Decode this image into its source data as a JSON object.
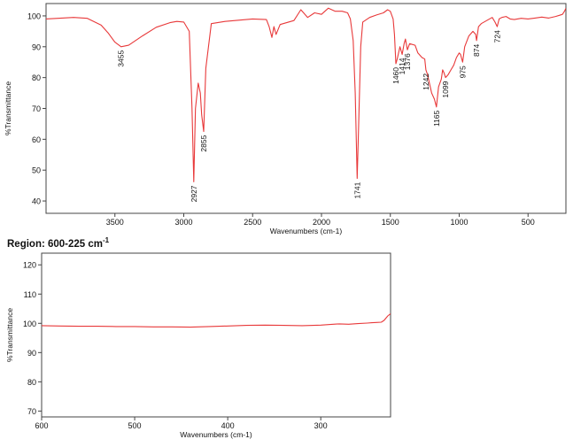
{
  "colors": {
    "spectrum": "#e8393a",
    "axis": "#444444",
    "text": "#111111"
  },
  "region_label": {
    "prefix": "Region: 600-225 cm",
    "sup": "-1"
  },
  "chart_data": [
    {
      "type": "line",
      "xlabel": "Wavenumbers (cm-1)",
      "ylabel": "%Transmittance",
      "xlim": [
        4000,
        225
      ],
      "ylim": [
        36,
        104
      ],
      "x_reversed": true,
      "xticks": [
        3500,
        3000,
        2500,
        2000,
        1500,
        1000,
        500
      ],
      "yticks": [
        40,
        50,
        60,
        70,
        80,
        90,
        100
      ],
      "peak_labels": [
        {
          "text": "3455",
          "x": 3455,
          "y": 90
        },
        {
          "text": "2927",
          "x": 2927,
          "y": 46.2
        },
        {
          "text": "2855",
          "x": 2855,
          "y": 62.5
        },
        {
          "text": "1741",
          "x": 1741,
          "y": 47.3
        },
        {
          "text": "1460",
          "x": 1460,
          "y": 84.5
        },
        {
          "text": "1414",
          "x": 1414,
          "y": 87.5
        },
        {
          "text": "1376",
          "x": 1376,
          "y": 89
        },
        {
          "text": "1242",
          "x": 1242,
          "y": 82.5
        },
        {
          "text": "1165",
          "x": 1165,
          "y": 70.5
        },
        {
          "text": "1099",
          "x": 1099,
          "y": 80
        },
        {
          "text": "975",
          "x": 975,
          "y": 85
        },
        {
          "text": "874",
          "x": 874,
          "y": 92
        },
        {
          "text": "724",
          "x": 724,
          "y": 96.5
        }
      ],
      "series": [
        {
          "x": [
            4000,
            3800,
            3700,
            3600,
            3550,
            3500,
            3455,
            3400,
            3300,
            3200,
            3100,
            3050,
            3000,
            2960,
            2940,
            2927,
            2915,
            2895,
            2880,
            2870,
            2855,
            2840,
            2800,
            2700,
            2600,
            2500,
            2400,
            2380,
            2360,
            2345,
            2330,
            2300,
            2200,
            2150,
            2100,
            2050,
            2000,
            1950,
            1900,
            1850,
            1810,
            1790,
            1770,
            1755,
            1741,
            1730,
            1715,
            1700,
            1650,
            1600,
            1550,
            1520,
            1500,
            1480,
            1470,
            1460,
            1450,
            1430,
            1414,
            1400,
            1390,
            1376,
            1360,
            1320,
            1300,
            1270,
            1250,
            1242,
            1230,
            1200,
            1180,
            1165,
            1150,
            1130,
            1120,
            1110,
            1099,
            1080,
            1060,
            1040,
            1020,
            1000,
            990,
            975,
            960,
            930,
            900,
            880,
            874,
            860,
            840,
            800,
            760,
            740,
            724,
            710,
            690,
            660,
            630,
            600,
            550,
            500,
            450,
            400,
            350,
            300,
            270,
            250,
            235,
            225
          ],
          "y": [
            99,
            99.5,
            99.2,
            97,
            94.5,
            91.5,
            90,
            90.5,
            93.5,
            96.3,
            97.8,
            98.2,
            98,
            95,
            70,
            46.2,
            70,
            78.2,
            75,
            68,
            62.5,
            83,
            97.5,
            98.2,
            98.6,
            99,
            98.8,
            96.5,
            93,
            96.5,
            94,
            97.2,
            98.5,
            102,
            99.5,
            101,
            100.5,
            102.5,
            101.5,
            101.5,
            101,
            99,
            92,
            75,
            47.3,
            65,
            90,
            98,
            99.5,
            100.3,
            101,
            102,
            101.5,
            99,
            94,
            84.5,
            86,
            90,
            87.5,
            91,
            92.5,
            89,
            91,
            90.5,
            88,
            86.5,
            86,
            82.5,
            81,
            75,
            73,
            70.5,
            77,
            79.5,
            82.5,
            81.5,
            80,
            81,
            82.5,
            84,
            86.5,
            88,
            87.5,
            85,
            90,
            93.5,
            95,
            94,
            92,
            96.5,
            97.5,
            98.5,
            99.5,
            98,
            96.5,
            99,
            99.5,
            99.8,
            99,
            98.8,
            99.2,
            99,
            99.3,
            99.6,
            99.3,
            99.8,
            100.2,
            100.5,
            101.5,
            102.5
          ]
        }
      ]
    },
    {
      "type": "line",
      "title": "",
      "xlabel": "Wavenumbers (cm-1)",
      "ylabel": "%Transmittance",
      "xlim": [
        600,
        225
      ],
      "ylim": [
        68,
        124
      ],
      "x_reversed": true,
      "xticks": [
        600,
        500,
        400,
        300
      ],
      "yticks": [
        70,
        80,
        90,
        100,
        110,
        120
      ],
      "series": [
        {
          "x": [
            600,
            580,
            560,
            540,
            520,
            500,
            480,
            460,
            440,
            420,
            400,
            380,
            360,
            340,
            320,
            300,
            290,
            280,
            270,
            260,
            250,
            245,
            240,
            235,
            232,
            228,
            225
          ],
          "y": [
            99.2,
            99.1,
            99.0,
            99.0,
            98.9,
            98.9,
            98.8,
            98.8,
            98.7,
            98.9,
            99.1,
            99.3,
            99.4,
            99.3,
            99.2,
            99.4,
            99.6,
            99.8,
            99.7,
            99.9,
            100.1,
            100.2,
            100.3,
            100.4,
            101,
            102.5,
            103.3
          ]
        }
      ]
    }
  ]
}
